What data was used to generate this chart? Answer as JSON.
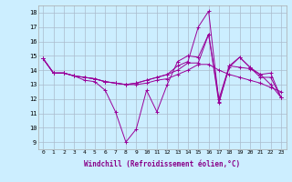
{
  "xlabel": "Windchill (Refroidissement éolien,°C)",
  "bg_color": "#cceeff",
  "line_color": "#990099",
  "grid_color": "#aabbcc",
  "ylim": [
    8.5,
    18.5
  ],
  "xlim": [
    -0.5,
    23.5
  ],
  "yticks": [
    9,
    10,
    11,
    12,
    13,
    14,
    15,
    16,
    17,
    18
  ],
  "xticks": [
    0,
    1,
    2,
    3,
    4,
    5,
    6,
    7,
    8,
    9,
    10,
    11,
    12,
    13,
    14,
    15,
    16,
    17,
    18,
    19,
    20,
    21,
    22,
    23
  ],
  "series": [
    [
      14.8,
      13.8,
      13.8,
      13.6,
      13.3,
      13.2,
      12.6,
      11.1,
      9.0,
      9.9,
      12.6,
      11.1,
      13.0,
      14.6,
      15.0,
      14.9,
      16.5,
      12.0,
      14.3,
      14.9,
      14.2,
      13.7,
      13.8,
      12.1
    ],
    [
      14.8,
      13.8,
      13.8,
      13.6,
      13.5,
      13.4,
      13.2,
      13.1,
      13.0,
      13.0,
      13.1,
      13.3,
      13.4,
      13.7,
      14.0,
      14.4,
      14.4,
      14.0,
      13.7,
      13.5,
      13.3,
      13.1,
      12.8,
      12.5
    ],
    [
      14.8,
      13.8,
      13.8,
      13.6,
      13.5,
      13.4,
      13.2,
      13.1,
      13.0,
      13.1,
      13.3,
      13.5,
      13.7,
      14.3,
      14.6,
      17.0,
      18.1,
      11.8,
      14.2,
      14.9,
      14.2,
      13.5,
      13.5,
      12.1
    ],
    [
      14.8,
      13.8,
      13.8,
      13.6,
      13.5,
      13.4,
      13.2,
      13.1,
      13.0,
      13.1,
      13.3,
      13.5,
      13.7,
      14.0,
      14.5,
      14.5,
      16.5,
      11.7,
      14.3,
      14.2,
      14.1,
      13.7,
      13.0,
      12.1
    ]
  ]
}
